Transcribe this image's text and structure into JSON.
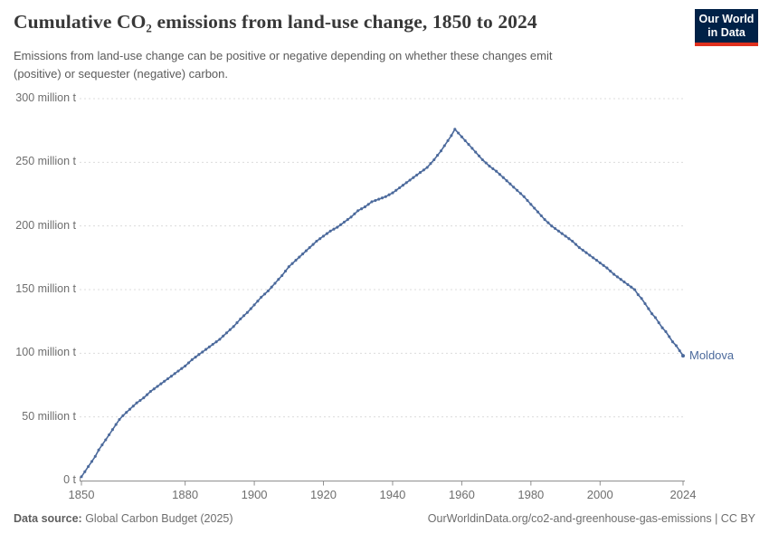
{
  "header": {
    "title": "Cumulative CO₂ emissions from land-use change, 1850 to 2024",
    "subtitle": "Emissions from land-use change can be positive or negative depending on whether these changes emit (positive) or sequester (negative) carbon.",
    "logo_line1": "Our World",
    "logo_line2": "in Data"
  },
  "footer": {
    "source_label": "Data source:",
    "source_rest": " Global Carbon Budget (2025)",
    "credit": "OurWorldinData.org/co2-and-greenhouse-gas-emissions | CC BY"
  },
  "colors": {
    "line": "#4c6a9c",
    "gridline": "#dcdcdc",
    "axis": "#8f8f8f",
    "logo_navy": "#002147",
    "logo_red": "#e0301e"
  },
  "chart_data": {
    "type": "line",
    "title": "Cumulative CO₂ emissions from land-use change, 1850 to 2024",
    "unit": "million t",
    "x_range": [
      1850,
      2024
    ],
    "y_range": [
      0,
      300
    ],
    "grid": true,
    "legend_position": "end-of-line-label",
    "x_ticks": [
      1850,
      1880,
      1900,
      1920,
      1940,
      1960,
      1980,
      2000,
      2024
    ],
    "y_ticks": [
      {
        "value": 0,
        "label": "0 t"
      },
      {
        "value": 50,
        "label": "50 million t"
      },
      {
        "value": 100,
        "label": "100 million t"
      },
      {
        "value": 150,
        "label": "150 million t"
      },
      {
        "value": 200,
        "label": "200 million t"
      },
      {
        "value": 250,
        "label": "250 million t"
      },
      {
        "value": 300,
        "label": "300 million t"
      }
    ],
    "series": [
      {
        "name": "Moldova",
        "points": [
          [
            1850,
            3
          ],
          [
            1851,
            7
          ],
          [
            1852,
            11
          ],
          [
            1853,
            15
          ],
          [
            1854,
            19
          ],
          [
            1855,
            24
          ],
          [
            1856,
            28
          ],
          [
            1857,
            32
          ],
          [
            1858,
            36
          ],
          [
            1859,
            40
          ],
          [
            1860,
            44
          ],
          [
            1861,
            48
          ],
          [
            1862,
            51
          ],
          [
            1864,
            56
          ],
          [
            1866,
            61
          ],
          [
            1868,
            65
          ],
          [
            1870,
            70
          ],
          [
            1872,
            74
          ],
          [
            1874,
            78
          ],
          [
            1876,
            82
          ],
          [
            1878,
            86
          ],
          [
            1880,
            90
          ],
          [
            1882,
            95
          ],
          [
            1884,
            99
          ],
          [
            1886,
            103
          ],
          [
            1888,
            107
          ],
          [
            1890,
            111
          ],
          [
            1892,
            116
          ],
          [
            1894,
            121
          ],
          [
            1896,
            127
          ],
          [
            1898,
            132
          ],
          [
            1900,
            138
          ],
          [
            1902,
            144
          ],
          [
            1904,
            149
          ],
          [
            1906,
            155
          ],
          [
            1908,
            161
          ],
          [
            1910,
            168
          ],
          [
            1912,
            173
          ],
          [
            1914,
            178
          ],
          [
            1916,
            183
          ],
          [
            1918,
            188
          ],
          [
            1920,
            192
          ],
          [
            1922,
            196
          ],
          [
            1924,
            199
          ],
          [
            1926,
            203
          ],
          [
            1928,
            207
          ],
          [
            1930,
            212
          ],
          [
            1932,
            215
          ],
          [
            1934,
            219
          ],
          [
            1936,
            221
          ],
          [
            1938,
            223
          ],
          [
            1940,
            226
          ],
          [
            1942,
            230
          ],
          [
            1944,
            234
          ],
          [
            1946,
            238
          ],
          [
            1948,
            242
          ],
          [
            1950,
            246
          ],
          [
            1952,
            252
          ],
          [
            1954,
            259
          ],
          [
            1956,
            267
          ],
          [
            1957,
            271
          ],
          [
            1958,
            276
          ],
          [
            1959,
            273
          ],
          [
            1960,
            270
          ],
          [
            1962,
            264
          ],
          [
            1964,
            258
          ],
          [
            1966,
            252
          ],
          [
            1968,
            247
          ],
          [
            1970,
            243
          ],
          [
            1972,
            238
          ],
          [
            1974,
            233
          ],
          [
            1976,
            228
          ],
          [
            1978,
            223
          ],
          [
            1980,
            217
          ],
          [
            1982,
            211
          ],
          [
            1984,
            205
          ],
          [
            1986,
            200
          ],
          [
            1988,
            196
          ],
          [
            1990,
            192
          ],
          [
            1992,
            188
          ],
          [
            1994,
            183
          ],
          [
            1996,
            179
          ],
          [
            1998,
            175
          ],
          [
            2000,
            171
          ],
          [
            2002,
            167
          ],
          [
            2004,
            162
          ],
          [
            2006,
            158
          ],
          [
            2008,
            154
          ],
          [
            2010,
            150
          ],
          [
            2011,
            146
          ],
          [
            2012,
            143
          ],
          [
            2013,
            139
          ],
          [
            2014,
            135
          ],
          [
            2015,
            131
          ],
          [
            2016,
            128
          ],
          [
            2017,
            124
          ],
          [
            2018,
            120
          ],
          [
            2019,
            117
          ],
          [
            2020,
            113
          ],
          [
            2021,
            109
          ],
          [
            2022,
            106
          ],
          [
            2023,
            102
          ],
          [
            2024,
            98
          ]
        ]
      }
    ]
  }
}
